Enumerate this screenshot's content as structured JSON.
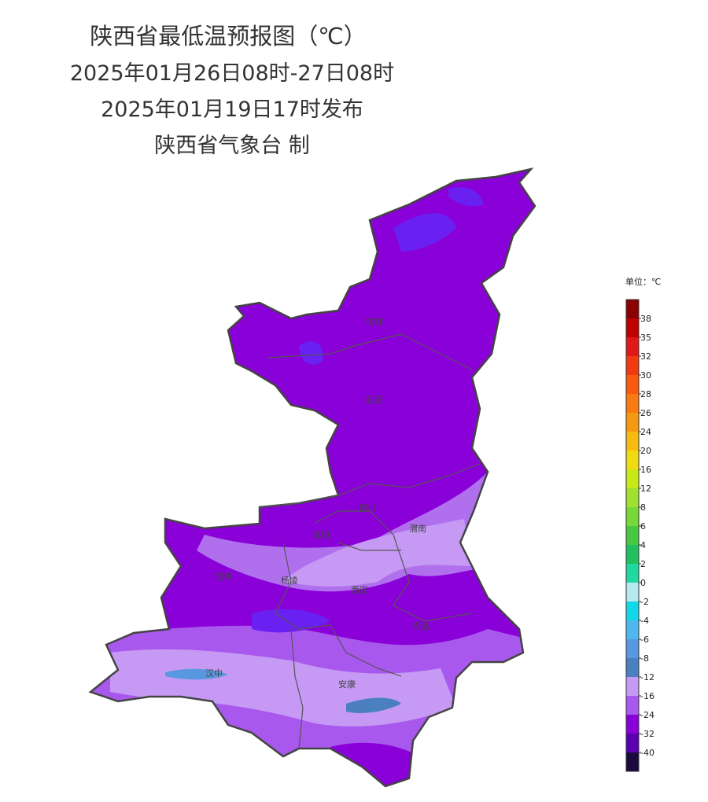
{
  "header": {
    "title": "陕西省最低温预报图（℃）",
    "period": "2025年01月26日08时-27日08时",
    "issued": "2025年01月19日17时发布",
    "producer": "陕西省气象台 制"
  },
  "legend": {
    "unit": "单位：℃",
    "ticks": [
      38,
      35,
      32,
      30,
      28,
      26,
      24,
      20,
      16,
      12,
      8,
      6,
      4,
      2,
      0,
      -2,
      -4,
      -6,
      -8,
      -12,
      -16,
      -24,
      -32,
      -40
    ],
    "colors": [
      "#8b0000",
      "#c00000",
      "#e01818",
      "#f03a10",
      "#fa5a10",
      "#f87a10",
      "#f59a10",
      "#f8bc10",
      "#f0dc10",
      "#c8e818",
      "#a0e030",
      "#78d838",
      "#48c840",
      "#20c060",
      "#20d8a0",
      "#b4eaf0",
      "#10d8e8",
      "#50b8f0",
      "#5898e0",
      "#4a80c0",
      "#c69af4",
      "#a858ec",
      "#8a00d8",
      "#5a00b0",
      "#1a0a40"
    ]
  },
  "map": {
    "cities": [
      "榆林",
      "延安",
      "铜川",
      "咸阳",
      "宝鸡",
      "杨凌",
      "西安",
      "渭南",
      "商洛",
      "汉中",
      "安康"
    ]
  }
}
